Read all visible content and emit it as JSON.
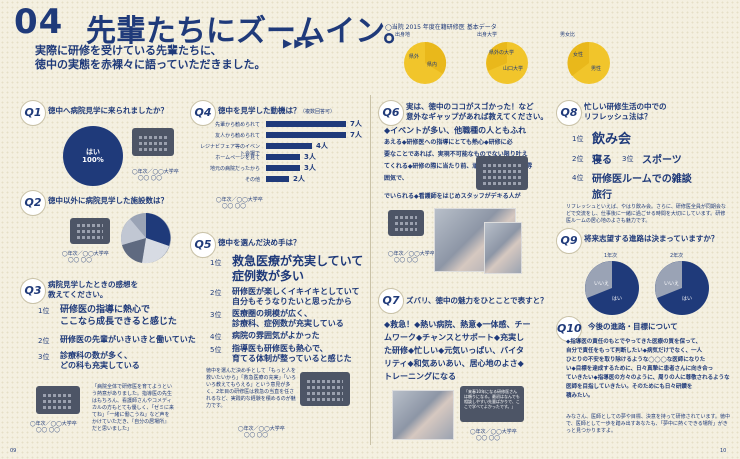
{
  "header": {
    "number": "04",
    "title": "先輩たちにズームイン。",
    "arrows": "▶▶▶",
    "lead": [
      "実際に研修を受けている先輩たちに、",
      "徳中の実態を赤裸々に語っていただきました。"
    ]
  },
  "survey": {
    "caption": "◯当院 2015 年度在籍研修医 基本データ",
    "labels": [
      "出身地",
      "出身大学",
      "男女比"
    ],
    "slices": [
      [
        "県外",
        "◯%"
      ],
      [
        "県内",
        "◯%"
      ],
      [
        "県外の大学",
        "◯%"
      ],
      [
        "山口大学",
        "◯%"
      ],
      [
        "女性",
        "◯人"
      ],
      [
        "男性",
        "◯人"
      ]
    ]
  },
  "q1": {
    "badge": "Q1",
    "question": "徳中へ病院見学に来られましたか？",
    "pie_label": "はい",
    "pie_value": "100%",
    "attribution": "◯年次／◯◯大学卒",
    "name": "◯◯ ◯◯"
  },
  "q2": {
    "badge": "Q2",
    "question": "徳中以外に病院見学した施設数は？",
    "attribution": "◯年次／◯◯大学卒",
    "name": "◯◯ ◯◯"
  },
  "q3": {
    "badge": "Q3",
    "question": [
      "病院見学したときの感想を",
      "教えてください。"
    ],
    "ranks": [
      {
        "rank": "1位",
        "text": [
          "研修医の指導に熱心で",
          "ここなら成長できると感じた"
        ]
      },
      {
        "rank": "2位",
        "text": [
          "研修医の先輩がいきいきと働いていた"
        ]
      },
      {
        "rank": "3位",
        "text": [
          "診療科の数が多く、",
          "どの科も充実している"
        ]
      }
    ],
    "bubble_text": [
      "「病院全体で研修医を育てようという熱意がありました。指導医の先生はもちろん、看護師さんやコメディカルの方もとても優しく、「ゼミに来てね」「一緒に働こうね」など声をかけていただき、『自分の居場所』だと思いました」"
    ],
    "attribution": "◯年次／◯◯大学卒",
    "name": "◯◯ ◯◯"
  },
  "q4": {
    "badge": "Q4",
    "question": "徳中を見学した動機は？",
    "note": "（複数回答可）",
    "chart_data": {
      "type": "bar",
      "categories": [
        "先輩から勧められて",
        "友人から勧められて",
        "レジナビフェア等のイベント会場で",
        "ホームページを見て",
        "地元の病院だったから",
        "その他"
      ],
      "values": [
        7,
        7,
        4,
        3,
        3,
        2
      ],
      "labels": [
        "7人",
        "7人",
        "4人",
        "3人",
        "3人",
        "2人"
      ]
    },
    "attribution": "◯年次／◯◯大学卒",
    "name": "◯◯ ◯◯"
  },
  "q5": {
    "badge": "Q5",
    "question": "徳中を選んだ決め手は？",
    "ranks": [
      {
        "rank": "1位",
        "text": [
          "救急医療が充実していて",
          "症例数が多い"
        ]
      },
      {
        "rank": "2位",
        "text": [
          "研修医が楽しくイキイキとしていて",
          "自分もそうなりたいと思ったから"
        ]
      },
      {
        "rank": "3位",
        "text": [
          "医療圏の規模が広く、",
          "診療科、症例数が充実している"
        ]
      },
      {
        "rank": "4位",
        "text": [
          "病院の雰囲気がよかった"
        ]
      },
      {
        "rank": "5位",
        "text": [
          "指導医も研修医も熱心で、",
          "育てる体制が整っていると感じた"
        ]
      }
    ],
    "comment": "徳中を選んだ決め手として「もっと人を救いたいから」「救急医療の充実」「いろいろ教えてもらえる」という意見が多く、2年目の研修医は救急の当直を任されるなど、実践的な経験を積めるのが魅力です。",
    "attribution": "◯年次／◯◯大学卒",
    "name": "◯◯ ◯◯"
  },
  "q6": {
    "badge": "Q6",
    "question": [
      "実は、徳中のココがスゴかった！など",
      "意外なギャップがあれば教えてください。"
    ],
    "answer": [
      "◆イベントが多い、他職種の人ともふれ",
      "あえる◆研修医への指導にとても熱心◆研修に必",
      "要なことであれば、実現不可能なものでない限り叶え",
      "てくれる◆研修の際に当たり前、頑張って当たり前の雰",
      "囲気で、",
      "でいられる◆看護師をはじめスタッフがデキる人が"
    ],
    "attribution": "◯年次／◯◯大学卒",
    "name": "◯◯ ◯◯"
  },
  "q7": {
    "badge": "Q7",
    "question": "ズバリ、徳中の魅力をひとことで表すと？",
    "answer": [
      "◆救急！◆熱い病院、熱意◆一体感、チー",
      "ムワーク◆チャンスとサポート◆充実し",
      "た研修◆忙しい◆元気いっぱい、バイタ",
      "リティ◆和気あいあい、居心地のよさ◆",
      "トレーニングになる"
    ],
    "bubble_text": "「来春10年になる研修医さんは頼りになる。最初はなんでも相談しやすい先輩ばかりで、ここで学べてよかったです。」",
    "attribution": "◯年次／◯◯大学卒",
    "name": "◯◯ ◯◯"
  },
  "q8": {
    "badge": "Q8",
    "question": [
      "忙しい研修生活の中での",
      "リフレッシュ法は？"
    ],
    "ranks": [
      {
        "rank": "1位",
        "text": "飲み会"
      },
      {
        "rank": "2位",
        "text": "寝る"
      },
      {
        "rank": "3位",
        "text": "スポーツ"
      },
      {
        "rank": "4位",
        "text": "研修医ルームでの雑談"
      },
      {
        "rank": "",
        "text": "旅行"
      }
    ],
    "comment": "リフレッシュといえば、やはり飲み会。さらに、研修医全員が同期会などで交流をし、仕事後に一緒に過ごせる時間を大切にしています。研修医ルームの居心地のよさも魅力です。"
  },
  "q9": {
    "badge": "Q9",
    "question": "将来志望する進路は決まっていますか？",
    "years": [
      "1年次",
      "2年次"
    ],
    "pie_labels": [
      "いいえ",
      "はい"
    ],
    "pct": "◯%"
  },
  "q10": {
    "badge": "Q10",
    "question": "今後の進路・目標について",
    "answer": [
      "◆指導医の責任のもとでやってきた医療の質を保って、",
      "自分で責任をもって判断したい◆病気だけでなく、一人",
      "ひとりの不安を取り除けるような◯◯◯な医師になりた",
      "い◆目標を達成するために、日々真摯に患者さんに向き合っ",
      "ていきたい◆指導医の方々のように、周りの人に尊敬されるような医師を目指していきたい。そのためにも日々研鑽を",
      "積みたい。"
    ],
    "comment": "みなさん、医師としての夢や目標、決意を持って研修されています。徳中で、医師として一歩を踏み出すあなたも、「夢中に熱くできる場所」がきっと見つかりますよ。"
  },
  "footer": {
    "page_left": "09",
    "page_right": "10"
  }
}
